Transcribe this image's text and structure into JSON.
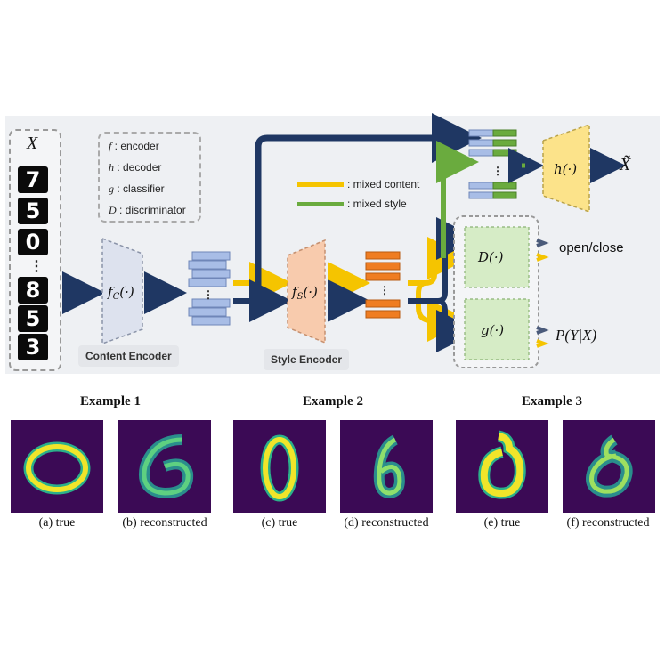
{
  "input": {
    "variable": "X",
    "digits": [
      "7",
      "5",
      "0",
      "⋮",
      "8",
      "5",
      "3"
    ]
  },
  "legend": [
    {
      "symbol": "f",
      "desc": ": encoder"
    },
    {
      "symbol": "h",
      "desc": ": decoder"
    },
    {
      "symbol": "g",
      "desc": ": classifier"
    },
    {
      "symbol": "D",
      "desc": ": discriminator"
    }
  ],
  "mix_legend": [
    {
      "label": ": mixed content",
      "color": "#f5c400"
    },
    {
      "label": ": mixed style",
      "color": "#6aab3e"
    }
  ],
  "modules": {
    "content_encoder_fn": "f_C(·)",
    "style_encoder_fn": "f_S(·)",
    "decoder_fn": "h(·)",
    "discriminator_fn": "D(·)",
    "classifier_fn": "g(·)",
    "content_encoder_label": "Content Encoder",
    "style_encoder_label": "Style Encoder",
    "reconstruction_output": "X̃",
    "discriminator_output": "open/close",
    "classifier_output": "P(Y|X)"
  },
  "colors": {
    "navy": "#1f3763",
    "yellow": "#f5c400",
    "green": "#6aab3e",
    "orange": "#ef7d22",
    "content_block": "#a8bde6",
    "encoder_content": "#dde2ee",
    "encoder_style": "#f8cbad",
    "decoder": "#fce38a",
    "module_green": "#d6ecc6"
  },
  "examples": [
    {
      "title": "Example 1",
      "captions": [
        "(a) true",
        "(b) reconstructed"
      ]
    },
    {
      "title": "Example 2",
      "captions": [
        "(c) true",
        "(d) reconstructed"
      ]
    },
    {
      "title": "Example 3",
      "captions": [
        "(e) true",
        "(f) reconstructed"
      ]
    }
  ]
}
